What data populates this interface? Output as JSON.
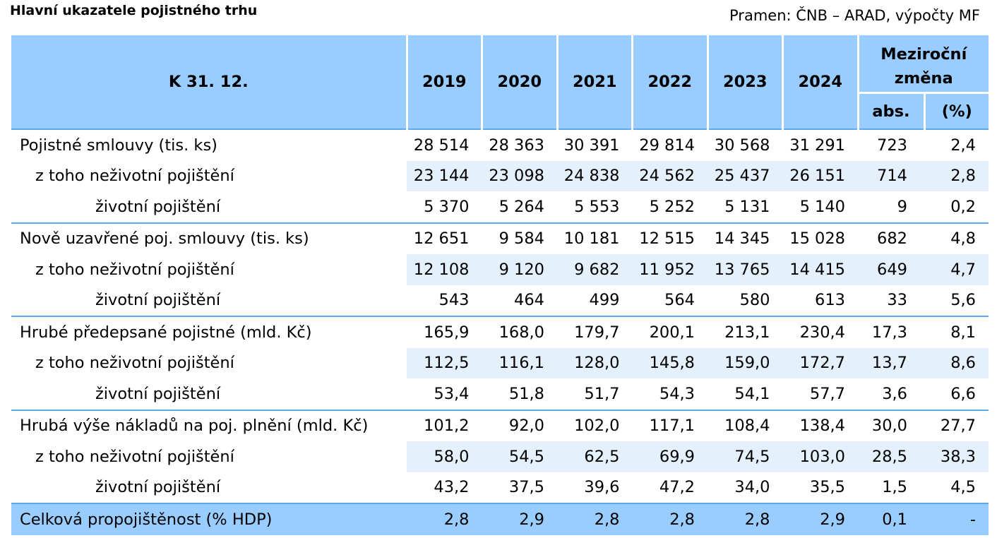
{
  "title": "Hlavní ukazatele pojistného trhu",
  "source": "Pramen: ČNB – ARAD, výpočty MF",
  "header": {
    "label": "K 31. 12.",
    "years": [
      "2019",
      "2020",
      "2021",
      "2022",
      "2023",
      "2024"
    ],
    "change_label_line1": "Meziroční",
    "change_label_line2": "změna",
    "abs": "abs.",
    "pct": "(%)"
  },
  "rows": [
    {
      "label": "Pojistné smlouvy (tis. ks)",
      "values": [
        "28 514",
        "28 363",
        "30 391",
        "29 814",
        "30 568",
        "31 291",
        "723",
        "2,4"
      ]
    },
    {
      "label": "z toho neživotní pojištění",
      "values": [
        "23 144",
        "23 098",
        "24 838",
        "24 562",
        "25 437",
        "26 151",
        "714",
        "2,8"
      ]
    },
    {
      "label": "životní pojištění",
      "values": [
        "5 370",
        "5 264",
        "5 553",
        "5 252",
        "5 131",
        "5 140",
        "9",
        "0,2"
      ]
    },
    {
      "label": "Nově uzavřené poj. smlouvy (tis. ks)",
      "values": [
        "12 651",
        "9 584",
        "10 181",
        "12 515",
        "14 345",
        "15 028",
        "682",
        "4,8"
      ]
    },
    {
      "label": "z toho neživotní pojištění",
      "values": [
        "12 108",
        "9 120",
        "9 682",
        "11 952",
        "13 765",
        "14 415",
        "649",
        "4,7"
      ]
    },
    {
      "label": "životní pojištění",
      "values": [
        "543",
        "464",
        "499",
        "564",
        "580",
        "613",
        "33",
        "5,6"
      ]
    },
    {
      "label": "Hrubé předepsané pojistné (mld. Kč)",
      "values": [
        "165,9",
        "168,0",
        "179,7",
        "200,1",
        "213,1",
        "230,4",
        "17,3",
        "8,1"
      ]
    },
    {
      "label": "z toho neživotní pojištění",
      "values": [
        "112,5",
        "116,1",
        "128,0",
        "145,8",
        "159,0",
        "172,7",
        "13,7",
        "8,6"
      ]
    },
    {
      "label": "životní pojištění",
      "values": [
        "53,4",
        "51,8",
        "51,7",
        "54,3",
        "54,1",
        "57,7",
        "3,6",
        "6,6"
      ]
    },
    {
      "label": "Hrubá výše nákladů na poj. plnění (mld. Kč)",
      "values": [
        "101,2",
        "92,0",
        "102,0",
        "117,1",
        "108,4",
        "138,4",
        "30,0",
        "27,7"
      ]
    },
    {
      "label": "z toho neživotní pojištění",
      "values": [
        "58,0",
        "54,5",
        "62,5",
        "69,9",
        "74,5",
        "103,0",
        "28,5",
        "38,3"
      ]
    },
    {
      "label": "životní pojištění",
      "values": [
        "43,2",
        "37,5",
        "39,6",
        "47,2",
        "34,0",
        "35,5",
        "1,5",
        "4,5"
      ]
    },
    {
      "label": "Celková propojištěnost (% HDP)",
      "values": [
        "2,8",
        "2,9",
        "2,8",
        "2,8",
        "2,8",
        "2,9",
        "0,1",
        "-"
      ]
    }
  ]
}
